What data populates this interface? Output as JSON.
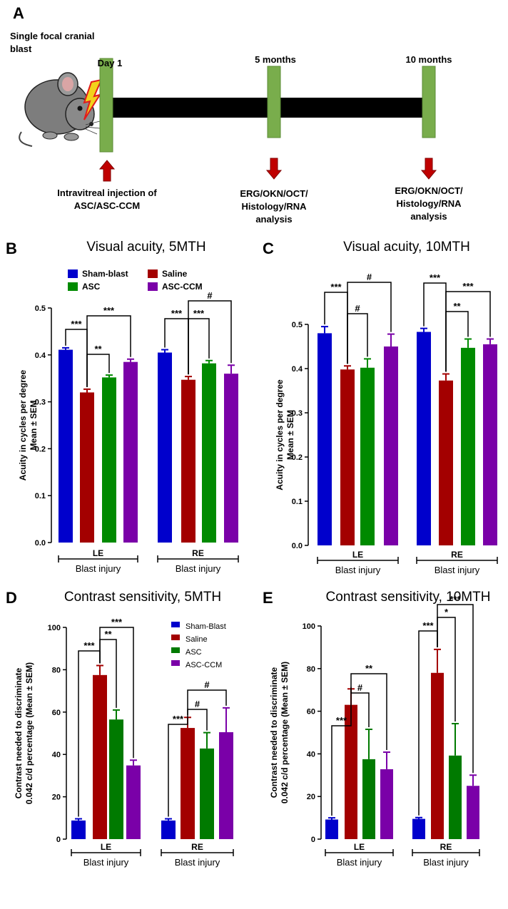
{
  "timeline": {
    "panel": "A",
    "event": [
      "Single focal cranial",
      "blast"
    ],
    "points": [
      {
        "label": "Day 1",
        "note": [
          "Intravitreal injection of",
          "ASC/ASC-CCM"
        ]
      },
      {
        "label": "5 months",
        "note": [
          "ERG/OKN/OCT/",
          "Histology/RNA",
          "analysis"
        ]
      },
      {
        "label": "10 months",
        "note": [
          "ERG/OKN/OCT/",
          "Histology/RNA",
          "analysis"
        ]
      }
    ]
  },
  "chart_data": [
    {
      "type": "bar",
      "panel": "B",
      "title": "Visual acuity, 5MTH",
      "ylabel": [
        "Acuity in cycles per degree",
        "Mean ± SEM"
      ],
      "xlabel": "Blast injury",
      "categories": [
        "LE",
        "RE"
      ],
      "ylim": [
        0,
        0.5
      ],
      "yticks": [
        {
          "value": 0,
          "label": "0.0"
        },
        0.1,
        0.2,
        0.3,
        0.4,
        0.5
      ],
      "series": [
        {
          "name": "Sham-blast",
          "color": "#0000cc",
          "values": [
            0.411,
            0.405
          ],
          "errors": [
            0.004,
            0.006
          ]
        },
        {
          "name": "Saline",
          "color": "#a30000",
          "values": [
            0.32,
            0.347
          ],
          "errors": [
            0.007,
            0.007
          ]
        },
        {
          "name": "ASC",
          "color": "#008a00",
          "values": [
            0.352,
            0.382
          ],
          "errors": [
            0.005,
            0.006
          ]
        },
        {
          "name": "ASC-CCM",
          "color": "#7a00a8",
          "values": [
            0.385,
            0.36
          ],
          "errors": [
            0.006,
            0.018
          ]
        }
      ],
      "annotations": [
        "***",
        "**",
        "***",
        "***",
        "***",
        "#"
      ]
    },
    {
      "type": "bar",
      "panel": "C",
      "title": "Visual acuity, 10MTH",
      "ylabel": [
        "Acuity in cycles per degree",
        "Mean ± SEM"
      ],
      "xlabel": "Blast injury",
      "categories": [
        "LE",
        "RE"
      ],
      "ylim": [
        0,
        0.5
      ],
      "yticks": [
        {
          "value": 0,
          "label": "0.0"
        },
        0.1,
        0.2,
        0.3,
        0.4,
        0.5
      ],
      "series": [
        {
          "color": "#0000cc",
          "values": [
            0.48,
            0.483
          ],
          "errors": [
            0.015,
            0.008
          ]
        },
        {
          "color": "#a30000",
          "values": [
            0.398,
            0.373
          ],
          "errors": [
            0.008,
            0.015
          ]
        },
        {
          "color": "#008a00",
          "values": [
            0.402,
            0.447
          ],
          "errors": [
            0.02,
            0.02
          ]
        },
        {
          "color": "#7a00a8",
          "values": [
            0.45,
            0.455
          ],
          "errors": [
            0.028,
            0.012
          ]
        }
      ],
      "annotations": [
        "***",
        "#",
        "#",
        "***",
        "**",
        "***"
      ]
    },
    {
      "type": "bar",
      "panel": "D",
      "title": "Contrast sensitivity, 5MTH",
      "ylabel": [
        "Contrast needed to discriminate",
        "0.042 c/d percentage (Mean ± SEM)"
      ],
      "xlabel": "Blast injury",
      "categories": [
        "LE",
        "RE"
      ],
      "ylim": [
        0,
        100
      ],
      "yticks": [
        0,
        20,
        40,
        60,
        80,
        100
      ],
      "series": [
        {
          "name": "Sham-Blast",
          "color": "#0000cc",
          "values": [
            8.8,
            8.8
          ],
          "errors": [
            0.8,
            0.8
          ]
        },
        {
          "name": "Saline",
          "color": "#a30000",
          "values": [
            77.5,
            52.5
          ],
          "errors": [
            4.5,
            5
          ]
        },
        {
          "name": "ASC",
          "color": "#007a00",
          "values": [
            56.5,
            42.8
          ],
          "errors": [
            4.5,
            7.5
          ]
        },
        {
          "name": "ASC-CCM",
          "color": "#7a00a8",
          "values": [
            34.8,
            50.5
          ],
          "errors": [
            2.5,
            11.5
          ]
        }
      ],
      "annotations": [
        "***",
        "**",
        "***",
        "***",
        "#",
        "#"
      ]
    },
    {
      "type": "bar",
      "panel": "E",
      "title": "Contrast sensitivity, 10MTH",
      "ylabel": [
        "Contrast needed to discriminate",
        "0.042 c/d percentage (Mean ± SEM)"
      ],
      "xlabel": "Blast injury",
      "categories": [
        "LE",
        "RE"
      ],
      "ylim": [
        0,
        100
      ],
      "yticks": [
        0,
        20,
        40,
        60,
        80,
        100
      ],
      "series": [
        {
          "color": "#0000cc",
          "values": [
            9.2,
            9.5
          ],
          "errors": [
            0.8,
            0.6
          ]
        },
        {
          "color": "#a30000",
          "values": [
            63,
            78
          ],
          "errors": [
            7.5,
            11
          ]
        },
        {
          "color": "#007a00",
          "values": [
            37.5,
            39.2
          ],
          "errors": [
            14,
            15
          ]
        },
        {
          "color": "#7a00a8",
          "values": [
            32.8,
            25
          ],
          "errors": [
            8,
            5
          ]
        }
      ],
      "annotations": [
        "***",
        "#",
        "**",
        "***",
        "*",
        "***"
      ]
    }
  ]
}
